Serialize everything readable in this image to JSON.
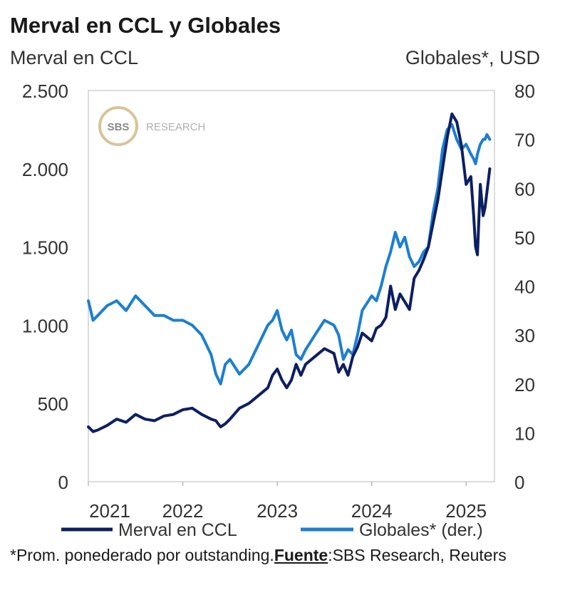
{
  "title": "Merval en CCL y Globales",
  "left_axis_label": "Merval en CCL",
  "right_axis_label": "Globales*, USD",
  "watermark": {
    "logo": "SBS",
    "text": "RESEARCH"
  },
  "footnote": {
    "prefix": "*Prom. ponederado por outstanding.",
    "source_label": "Fuente",
    "source_text": ":SBS Research, Reuters"
  },
  "colors": {
    "merval": "#0d1f63",
    "globales": "#1c7fd0",
    "frame": "#d0d0d0"
  },
  "chart_data": {
    "type": "line",
    "title": "Merval en CCL y Globales",
    "xlabel": "",
    "ylabel": "Merval en CCL",
    "ylabel_right": "Globales*, USD",
    "xlim": [
      2021.0,
      2025.3
    ],
    "ylim": [
      0,
      2500
    ],
    "ylim_right": [
      0,
      80
    ],
    "x_ticks": [
      2021,
      2022,
      2023,
      2024,
      2025
    ],
    "x_tick_labels": [
      "2021",
      "2022",
      "2023",
      "2024",
      "2025"
    ],
    "y_ticks": [
      0,
      500,
      1000,
      1500,
      2000,
      2500
    ],
    "y_tick_labels": [
      "0",
      "500",
      "1.000",
      "1.500",
      "2.000",
      "2.500"
    ],
    "y_right_ticks": [
      0,
      10,
      20,
      30,
      40,
      50,
      60,
      70,
      80
    ],
    "y_right_tick_labels": [
      "0",
      "10",
      "20",
      "30",
      "40",
      "50",
      "60",
      "70",
      "80"
    ],
    "legend": [
      "Merval en CCL",
      "Globales* (der.)"
    ],
    "legend_position": "bottom",
    "series": [
      {
        "name": "Merval en CCL",
        "axis": "left",
        "x": [
          2021.0,
          2021.05,
          2021.1,
          2021.2,
          2021.3,
          2021.4,
          2021.5,
          2021.6,
          2021.7,
          2021.8,
          2021.9,
          2022.0,
          2022.1,
          2022.2,
          2022.3,
          2022.35,
          2022.4,
          2022.45,
          2022.5,
          2022.6,
          2022.7,
          2022.8,
          2022.9,
          2022.95,
          2023.0,
          2023.05,
          2023.1,
          2023.15,
          2023.2,
          2023.25,
          2023.3,
          2023.4,
          2023.5,
          2023.6,
          2023.65,
          2023.7,
          2023.75,
          2023.8,
          2023.85,
          2023.9,
          2024.0,
          2024.05,
          2024.1,
          2024.15,
          2024.2,
          2024.25,
          2024.3,
          2024.35,
          2024.4,
          2024.45,
          2024.5,
          2024.55,
          2024.6,
          2024.65,
          2024.7,
          2024.75,
          2024.8,
          2024.85,
          2024.9,
          2024.95,
          2025.0,
          2025.05,
          2025.08,
          2025.1,
          2025.12,
          2025.15,
          2025.18,
          2025.2,
          2025.22,
          2025.25
        ],
        "values": [
          350,
          320,
          330,
          360,
          400,
          380,
          430,
          400,
          390,
          420,
          430,
          460,
          470,
          430,
          400,
          390,
          350,
          370,
          400,
          470,
          500,
          550,
          600,
          680,
          720,
          650,
          600,
          650,
          750,
          680,
          750,
          800,
          850,
          820,
          700,
          750,
          680,
          800,
          860,
          950,
          900,
          980,
          1000,
          1050,
          1250,
          1100,
          1200,
          1150,
          1100,
          1300,
          1350,
          1420,
          1500,
          1650,
          1800,
          2000,
          2200,
          2350,
          2300,
          2150,
          1900,
          1950,
          1700,
          1500,
          1450,
          1900,
          1700,
          1750,
          1850,
          2000
        ]
      },
      {
        "name": "Globales* (der.)",
        "axis": "right",
        "x": [
          2021.0,
          2021.05,
          2021.1,
          2021.2,
          2021.3,
          2021.4,
          2021.5,
          2021.6,
          2021.7,
          2021.8,
          2021.9,
          2022.0,
          2022.1,
          2022.2,
          2022.3,
          2022.35,
          2022.4,
          2022.45,
          2022.5,
          2022.6,
          2022.7,
          2022.8,
          2022.9,
          2022.95,
          2023.0,
          2023.05,
          2023.1,
          2023.15,
          2023.2,
          2023.25,
          2023.3,
          2023.4,
          2023.5,
          2023.6,
          2023.65,
          2023.7,
          2023.75,
          2023.8,
          2023.85,
          2023.9,
          2024.0,
          2024.05,
          2024.1,
          2024.15,
          2024.2,
          2024.25,
          2024.3,
          2024.35,
          2024.4,
          2024.45,
          2024.5,
          2024.55,
          2024.6,
          2024.65,
          2024.7,
          2024.75,
          2024.8,
          2024.85,
          2024.9,
          2024.95,
          2025.0,
          2025.05,
          2025.08,
          2025.1,
          2025.12,
          2025.15,
          2025.18,
          2025.2,
          2025.22,
          2025.25
        ],
        "values": [
          37,
          33,
          34,
          36,
          37,
          35,
          38,
          36,
          34,
          34,
          33,
          33,
          32,
          30,
          26,
          22,
          20,
          24,
          25,
          22,
          24,
          28,
          32,
          33,
          35,
          31,
          29,
          31,
          26,
          25,
          27,
          30,
          33,
          32,
          30,
          25,
          27,
          26,
          30,
          35,
          38,
          37,
          40,
          44,
          47,
          51,
          48,
          50,
          46,
          44,
          45,
          47,
          48,
          55,
          60,
          68,
          72,
          73,
          70,
          68,
          69,
          67,
          66,
          65,
          67,
          69,
          70,
          70,
          71,
          70
        ]
      }
    ]
  }
}
